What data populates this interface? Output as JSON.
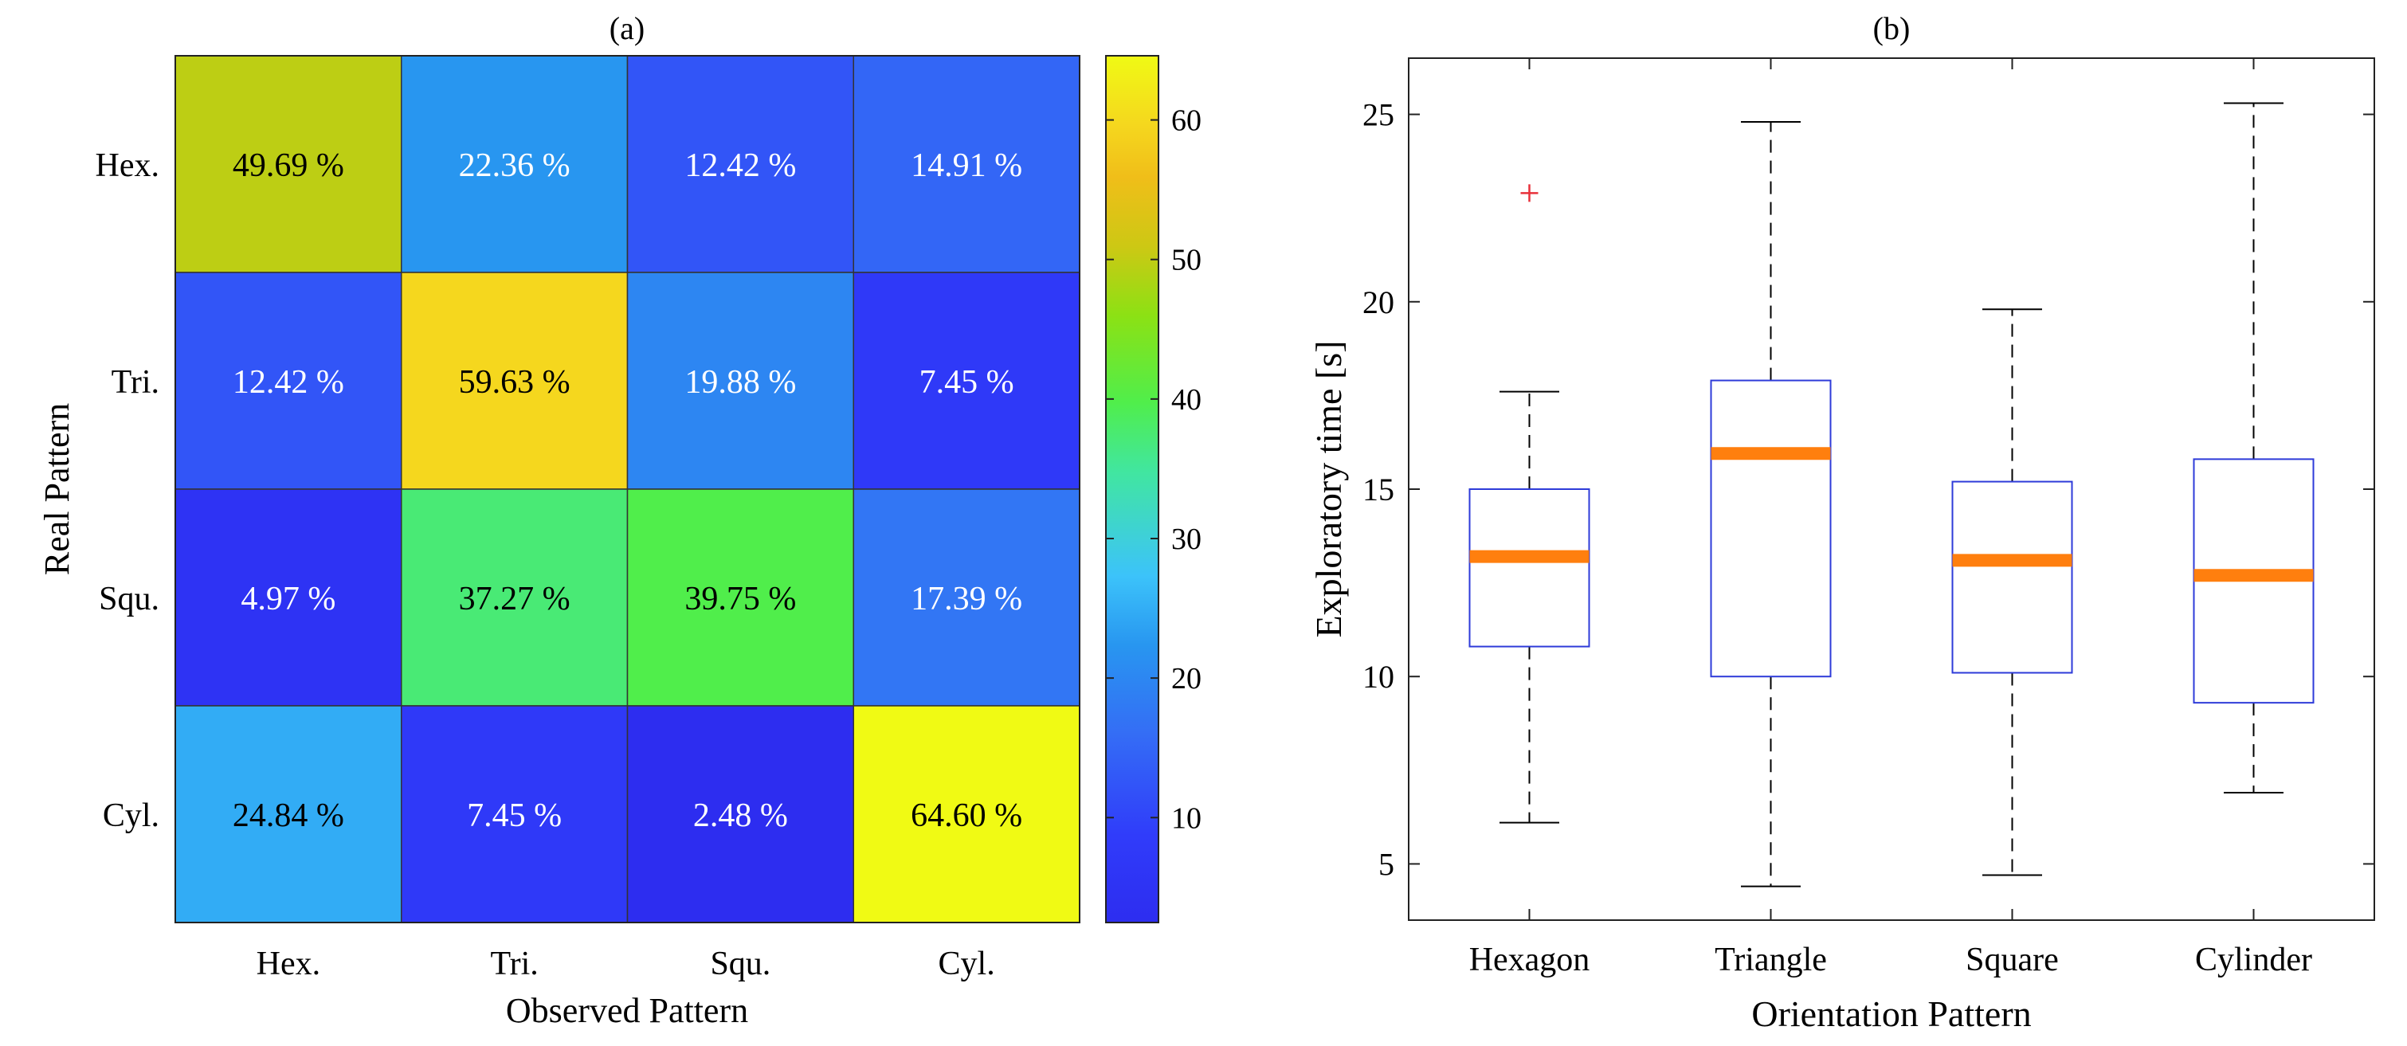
{
  "chart_data": [
    {
      "type": "heatmap",
      "panel_label": "(a)",
      "xlabel": "Observed Pattern",
      "ylabel": "Real Pattern",
      "x_categories": [
        "Hex.",
        "Tri.",
        "Squ.",
        "Cyl."
      ],
      "y_categories": [
        "Hex.",
        "Tri.",
        "Squ.",
        "Cyl."
      ],
      "values": [
        [
          49.69,
          22.36,
          12.42,
          14.91
        ],
        [
          12.42,
          59.63,
          19.88,
          7.45
        ],
        [
          4.97,
          37.27,
          39.75,
          17.39
        ],
        [
          24.84,
          7.45,
          2.48,
          64.6
        ]
      ],
      "cell_labels": [
        [
          "49.69 %",
          "22.36 %",
          "12.42 %",
          "14.91 %"
        ],
        [
          "12.42 %",
          "59.63 %",
          "19.88 %",
          "7.45 %"
        ],
        [
          "4.97 %",
          "37.27 %",
          "39.75 %",
          "17.39 %"
        ],
        [
          "24.84 %",
          "7.45 %",
          "2.48 %",
          "64.60 %"
        ]
      ],
      "colormap": "parula",
      "colorbar": {
        "range": [
          2.48,
          64.6
        ],
        "ticks": [
          10,
          20,
          30,
          40,
          50,
          60
        ],
        "tick_labels": [
          "10",
          "20",
          "30",
          "40",
          "50",
          "60"
        ]
      }
    },
    {
      "type": "box",
      "panel_label": "(b)",
      "xlabel": "Orientation Pattern",
      "ylabel": "Exploratory time [s]",
      "categories": [
        "Hexagon",
        "Triangle",
        "Square",
        "Cylinder"
      ],
      "ylim": [
        3.5,
        26.5
      ],
      "yticks": [
        5,
        10,
        15,
        20,
        25
      ],
      "ytick_labels": [
        "5",
        "10",
        "15",
        "20",
        "25"
      ],
      "boxes": [
        {
          "name": "Hexagon",
          "whisker_low": 6.1,
          "q1": 10.8,
          "median": 13.2,
          "q3": 15.0,
          "whisker_high": 17.6,
          "outliers": [
            22.9
          ]
        },
        {
          "name": "Triangle",
          "whisker_low": 4.4,
          "q1": 10.0,
          "median": 15.95,
          "q3": 17.9,
          "whisker_high": 24.8,
          "outliers": []
        },
        {
          "name": "Square",
          "whisker_low": 4.7,
          "q1": 10.1,
          "median": 13.1,
          "q3": 15.2,
          "whisker_high": 19.8,
          "outliers": []
        },
        {
          "name": "Cylinder",
          "whisker_low": 6.9,
          "q1": 9.3,
          "median": 12.7,
          "q3": 15.8,
          "whisker_high": 25.3,
          "outliers": []
        }
      ],
      "colors": {
        "box": "#2e3bd9",
        "median": "#ff7f0e",
        "whisker": "#000000",
        "outlier": "#e8303a"
      }
    }
  ]
}
